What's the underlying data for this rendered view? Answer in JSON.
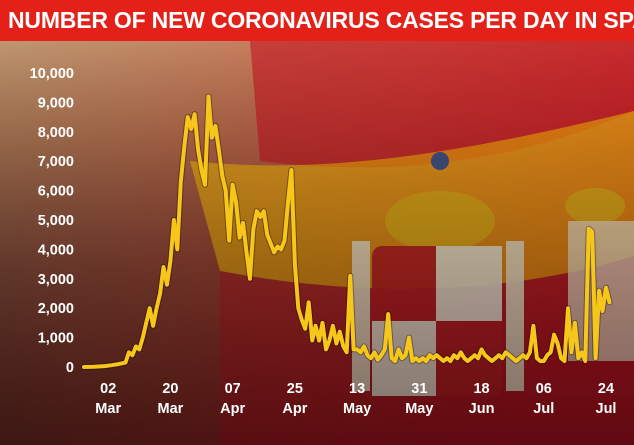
{
  "title": "NUMBER OF NEW CORONAVIRUS CASES PER DAY IN SPAIN",
  "colors": {
    "banner": "#e32119",
    "line": "#f6c61a",
    "text": "#ffffff",
    "flag_red": "#c60b1e",
    "flag_yellow": "#ffc400"
  },
  "chart_data": {
    "type": "line",
    "title": "NUMBER OF NEW CORONAVIRUS CASES PER DAY IN SPAIN",
    "xlabel": "",
    "ylabel": "",
    "ylim": [
      0,
      10000
    ],
    "yticks": [
      "0",
      "1,000",
      "2,000",
      "3,000",
      "4,000",
      "5,000",
      "6,000",
      "7,000",
      "8,000",
      "9,000",
      "10,000"
    ],
    "xticks": [
      {
        "day": "02",
        "month": "Mar",
        "date": "2020-03-02"
      },
      {
        "day": "20",
        "month": "Mar",
        "date": "2020-03-20"
      },
      {
        "day": "07",
        "month": "Apr",
        "date": "2020-04-07"
      },
      {
        "day": "25",
        "month": "Apr",
        "date": "2020-04-25"
      },
      {
        "day": "13",
        "month": "May",
        "date": "2020-05-13"
      },
      {
        "day": "31",
        "month": "May",
        "date": "2020-05-31"
      },
      {
        "day": "18",
        "month": "Jun",
        "date": "2020-06-18"
      },
      {
        "day": "06",
        "month": "Jul",
        "date": "2020-07-06"
      },
      {
        "day": "24",
        "month": "Jul",
        "date": "2020-07-24"
      }
    ],
    "grid": false,
    "series": [
      {
        "values": [
          [
            "2020-02-24",
            0
          ],
          [
            "2020-02-27",
            10
          ],
          [
            "2020-03-01",
            30
          ],
          [
            "2020-03-03",
            60
          ],
          [
            "2020-03-05",
            100
          ],
          [
            "2020-03-07",
            150
          ],
          [
            "2020-03-08",
            500
          ],
          [
            "2020-03-09",
            400
          ],
          [
            "2020-03-10",
            700
          ],
          [
            "2020-03-11",
            600
          ],
          [
            "2020-03-12",
            1000
          ],
          [
            "2020-03-13",
            1500
          ],
          [
            "2020-03-14",
            2000
          ],
          [
            "2020-03-15",
            1400
          ],
          [
            "2020-03-16",
            2000
          ],
          [
            "2020-03-17",
            2500
          ],
          [
            "2020-03-18",
            3400
          ],
          [
            "2020-03-19",
            2800
          ],
          [
            "2020-03-20",
            3600
          ],
          [
            "2020-03-21",
            5000
          ],
          [
            "2020-03-22",
            4000
          ],
          [
            "2020-03-23",
            6300
          ],
          [
            "2020-03-24",
            7500
          ],
          [
            "2020-03-25",
            8500
          ],
          [
            "2020-03-26",
            8100
          ],
          [
            "2020-03-27",
            8600
          ],
          [
            "2020-03-28",
            7400
          ],
          [
            "2020-03-29",
            6700
          ],
          [
            "2020-03-30",
            6200
          ],
          [
            "2020-03-31",
            9200
          ],
          [
            "2020-04-01",
            7800
          ],
          [
            "2020-04-02",
            8200
          ],
          [
            "2020-04-03",
            7400
          ],
          [
            "2020-04-04",
            6500
          ],
          [
            "2020-04-05",
            6000
          ],
          [
            "2020-04-06",
            4300
          ],
          [
            "2020-04-07",
            6200
          ],
          [
            "2020-04-08",
            5600
          ],
          [
            "2020-04-09",
            4400
          ],
          [
            "2020-04-10",
            4900
          ],
          [
            "2020-04-11",
            3900
          ],
          [
            "2020-04-12",
            3000
          ],
          [
            "2020-04-13",
            4700
          ],
          [
            "2020-04-14",
            5300
          ],
          [
            "2020-04-15",
            5100
          ],
          [
            "2020-04-16",
            5300
          ],
          [
            "2020-04-17",
            4500
          ],
          [
            "2020-04-18",
            4200
          ],
          [
            "2020-04-19",
            3900
          ],
          [
            "2020-04-20",
            4100
          ],
          [
            "2020-04-21",
            4000
          ],
          [
            "2020-04-22",
            4300
          ],
          [
            "2020-04-23",
            5600
          ],
          [
            "2020-04-24",
            6700
          ],
          [
            "2020-04-25",
            3500
          ],
          [
            "2020-04-26",
            2000
          ],
          [
            "2020-04-27",
            1600
          ],
          [
            "2020-04-28",
            1300
          ],
          [
            "2020-04-29",
            2200
          ],
          [
            "2020-04-30",
            900
          ],
          [
            "2020-05-01",
            1400
          ],
          [
            "2020-05-02",
            900
          ],
          [
            "2020-05-03",
            1500
          ],
          [
            "2020-05-04",
            600
          ],
          [
            "2020-05-05",
            900
          ],
          [
            "2020-05-06",
            1400
          ],
          [
            "2020-05-07",
            800
          ],
          [
            "2020-05-08",
            1200
          ],
          [
            "2020-05-09",
            700
          ],
          [
            "2020-05-10",
            500
          ],
          [
            "2020-05-11",
            3100
          ],
          [
            "2020-05-12",
            600
          ],
          [
            "2020-05-13",
            600
          ],
          [
            "2020-05-14",
            500
          ],
          [
            "2020-05-15",
            700
          ],
          [
            "2020-05-16",
            400
          ],
          [
            "2020-05-17",
            300
          ],
          [
            "2020-05-18",
            500
          ],
          [
            "2020-05-19",
            250
          ],
          [
            "2020-05-20",
            400
          ],
          [
            "2020-05-21",
            600
          ],
          [
            "2020-05-22",
            1800
          ],
          [
            "2020-05-23",
            300
          ],
          [
            "2020-05-24",
            200
          ],
          [
            "2020-05-25",
            600
          ],
          [
            "2020-05-26",
            300
          ],
          [
            "2020-05-27",
            400
          ],
          [
            "2020-05-28",
            1000
          ],
          [
            "2020-05-29",
            200
          ],
          [
            "2020-05-30",
            300
          ],
          [
            "2020-05-31",
            200
          ],
          [
            "2020-06-01",
            300
          ],
          [
            "2020-06-02",
            200
          ],
          [
            "2020-06-03",
            400
          ],
          [
            "2020-06-04",
            300
          ],
          [
            "2020-06-05",
            400
          ],
          [
            "2020-06-06",
            300
          ],
          [
            "2020-06-07",
            200
          ],
          [
            "2020-06-08",
            300
          ],
          [
            "2020-06-09",
            200
          ],
          [
            "2020-06-10",
            400
          ],
          [
            "2020-06-11",
            300
          ],
          [
            "2020-06-12",
            500
          ],
          [
            "2020-06-13",
            300
          ],
          [
            "2020-06-14",
            200
          ],
          [
            "2020-06-15",
            300
          ],
          [
            "2020-06-16",
            400
          ],
          [
            "2020-06-17",
            300
          ],
          [
            "2020-06-18",
            600
          ],
          [
            "2020-06-19",
            400
          ],
          [
            "2020-06-20",
            300
          ],
          [
            "2020-06-21",
            200
          ],
          [
            "2020-06-22",
            300
          ],
          [
            "2020-06-23",
            400
          ],
          [
            "2020-06-24",
            300
          ],
          [
            "2020-06-25",
            500
          ],
          [
            "2020-06-26",
            400
          ],
          [
            "2020-06-27",
            300
          ],
          [
            "2020-06-28",
            200
          ],
          [
            "2020-06-29",
            300
          ],
          [
            "2020-06-30",
            400
          ],
          [
            "2020-07-01",
            300
          ],
          [
            "2020-07-02",
            500
          ],
          [
            "2020-07-03",
            1400
          ],
          [
            "2020-07-04",
            300
          ],
          [
            "2020-07-05",
            200
          ],
          [
            "2020-07-06",
            200
          ],
          [
            "2020-07-07",
            400
          ],
          [
            "2020-07-08",
            500
          ],
          [
            "2020-07-09",
            1100
          ],
          [
            "2020-07-10",
            800
          ],
          [
            "2020-07-11",
            300
          ],
          [
            "2020-07-12",
            200
          ],
          [
            "2020-07-13",
            2000
          ],
          [
            "2020-07-14",
            500
          ],
          [
            "2020-07-15",
            1500
          ],
          [
            "2020-07-16",
            300
          ],
          [
            "2020-07-17",
            500
          ],
          [
            "2020-07-18",
            200
          ],
          [
            "2020-07-19",
            4700
          ],
          [
            "2020-07-20",
            4600
          ],
          [
            "2020-07-21",
            300
          ],
          [
            "2020-07-22",
            2600
          ],
          [
            "2020-07-23",
            1900
          ],
          [
            "2020-07-24",
            2700
          ],
          [
            "2020-07-25",
            2200
          ]
        ]
      }
    ]
  }
}
